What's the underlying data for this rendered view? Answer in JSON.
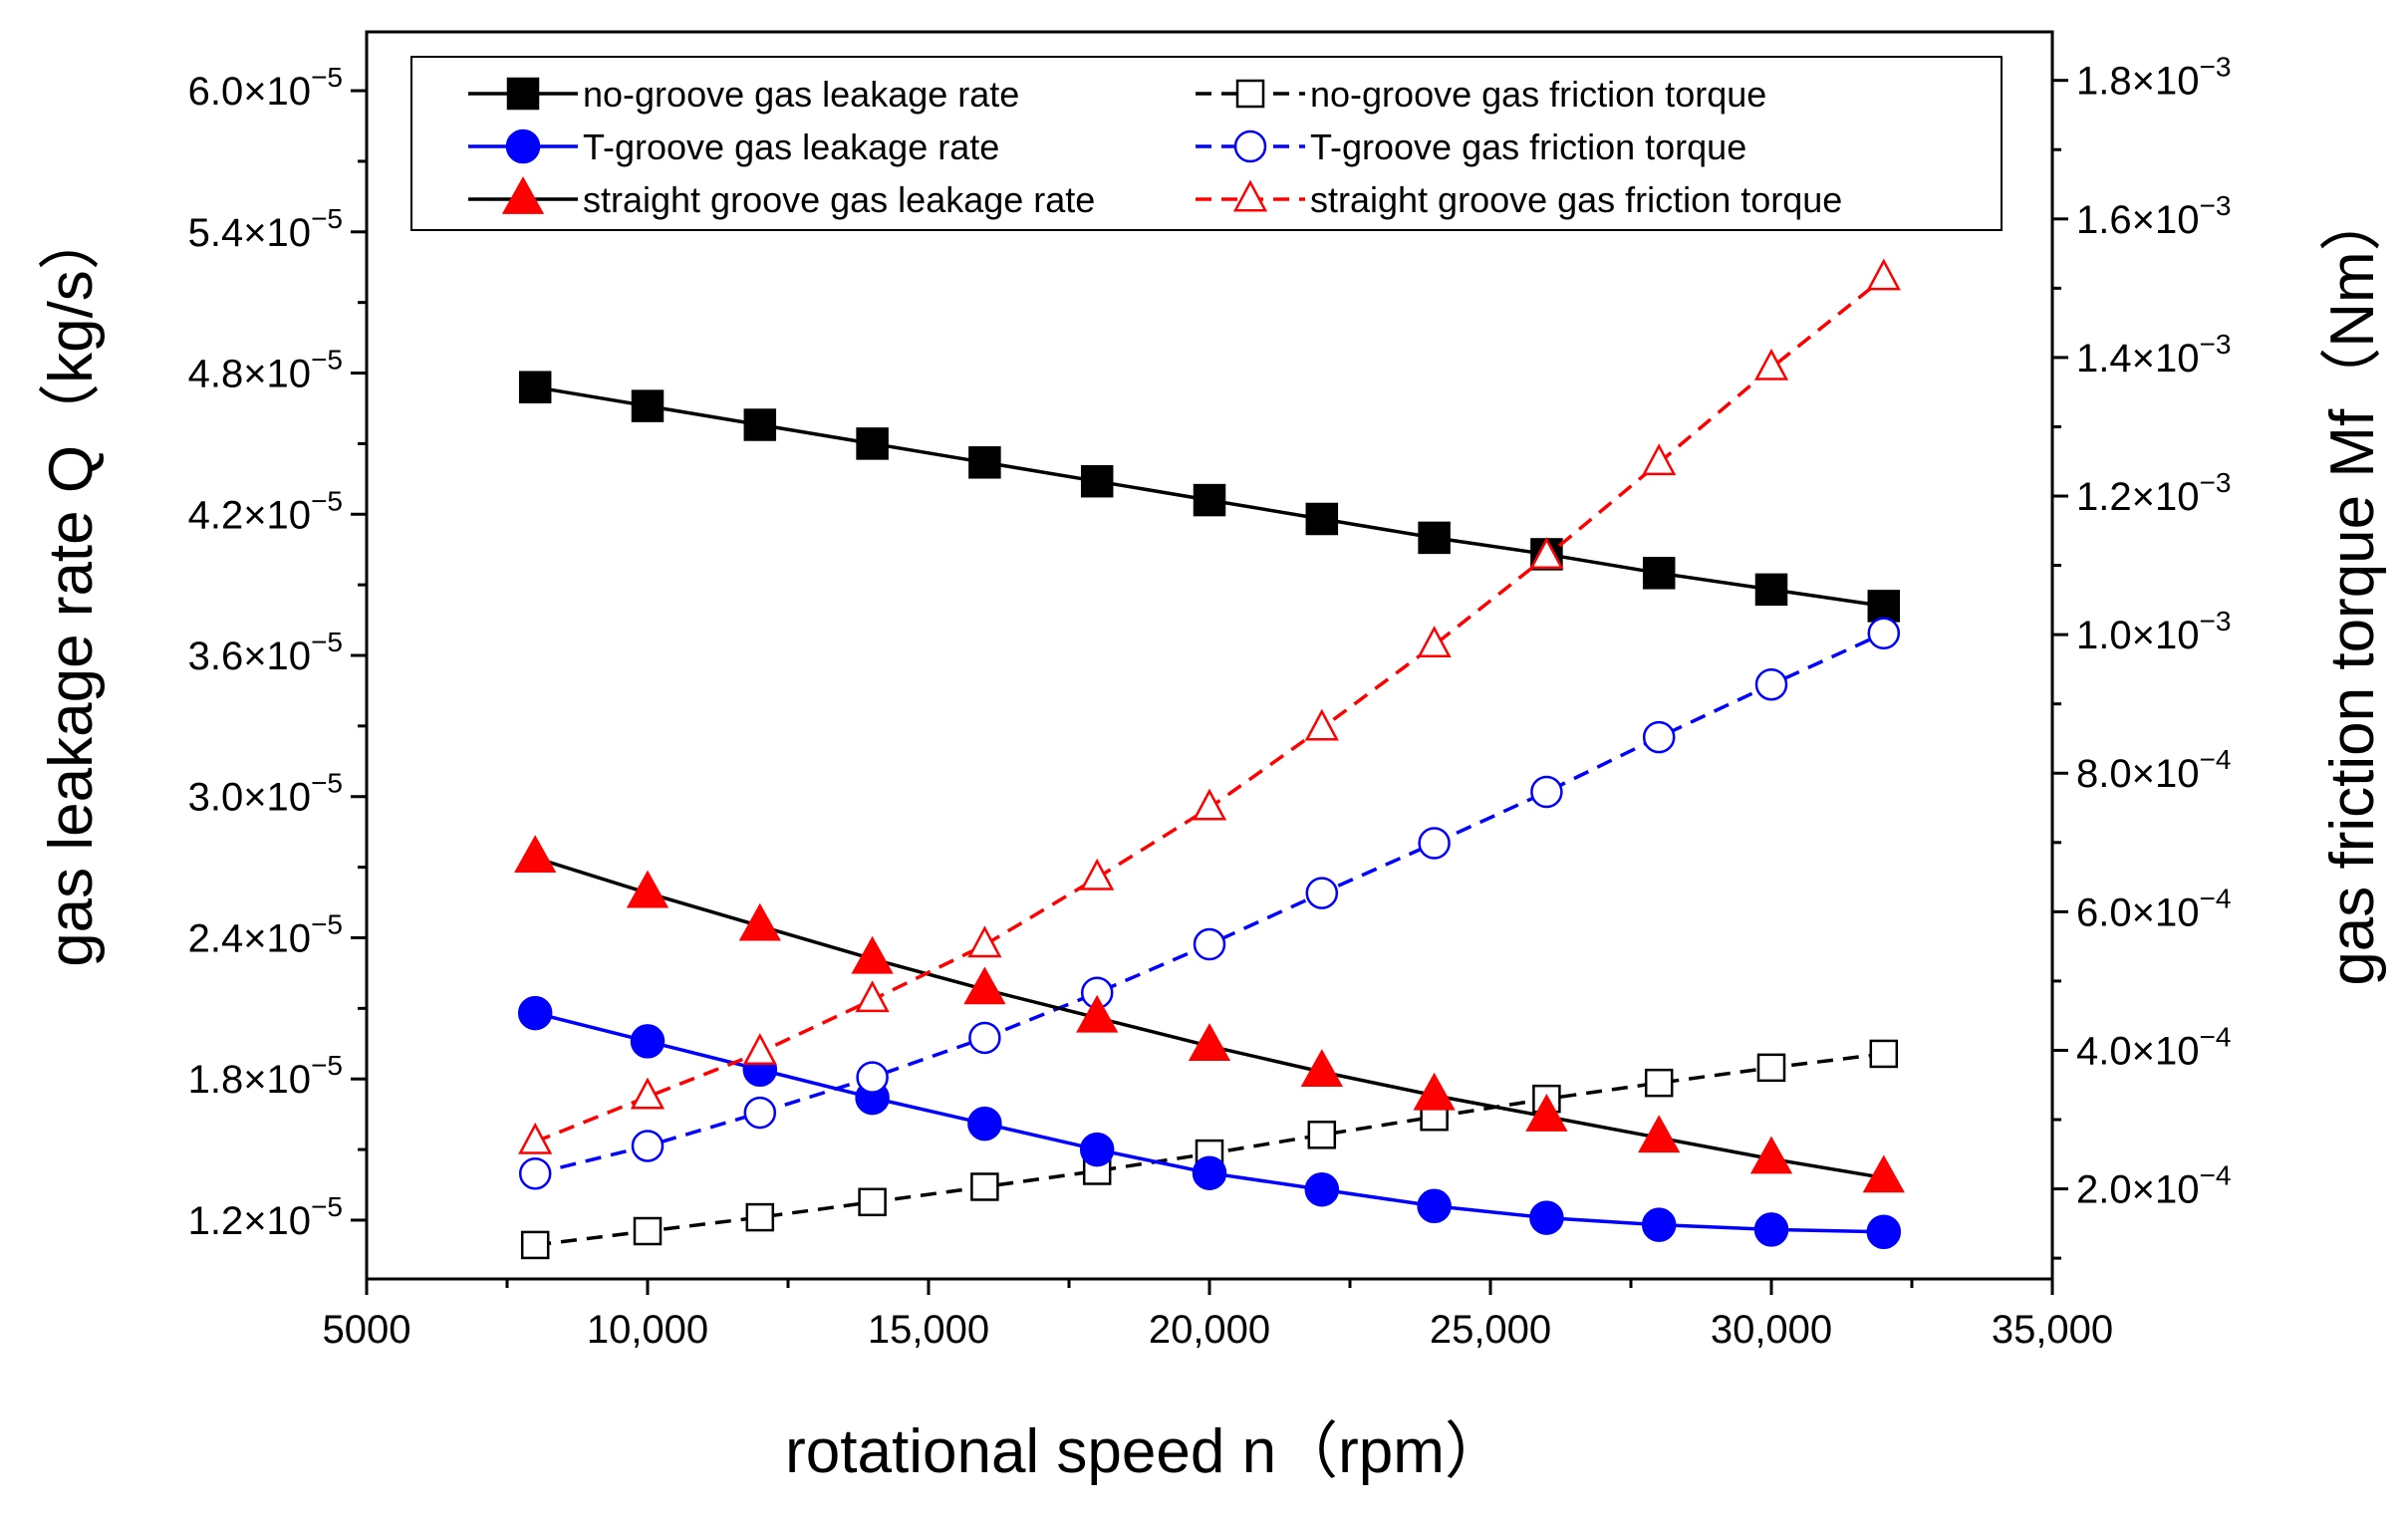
{
  "chart_data": {
    "type": "line",
    "xlabel": "rotational speed n（rpm）",
    "ylabel_left": "gas leakage rate Q（kg/s）",
    "ylabel_right": "gas friction torque Mf（Nm）",
    "x_range": [
      5000,
      35000
    ],
    "y_left_range": [
      9.5e-06,
      6.25e-05
    ],
    "y_right_range": [
      7e-05,
      0.00187
    ],
    "x_ticks": [
      {
        "value": 5000,
        "label": "5000"
      },
      {
        "value": 10000,
        "label": "10,000"
      },
      {
        "value": 15000,
        "label": "15,000"
      },
      {
        "value": 20000,
        "label": "20,000"
      },
      {
        "value": 25000,
        "label": "25,000"
      },
      {
        "value": 30000,
        "label": "30,000"
      },
      {
        "value": 35000,
        "label": "35,000"
      }
    ],
    "y_left_ticks": [
      {
        "value": 1.2e-05,
        "mant": "1.2×10",
        "exp": "−5"
      },
      {
        "value": 1.8e-05,
        "mant": "1.8×10",
        "exp": "−5"
      },
      {
        "value": 2.4e-05,
        "mant": "2.4×10",
        "exp": "−5"
      },
      {
        "value": 3e-05,
        "mant": "3.0×10",
        "exp": "−5"
      },
      {
        "value": 3.6e-05,
        "mant": "3.6×10",
        "exp": "−5"
      },
      {
        "value": 4.2e-05,
        "mant": "4.2×10",
        "exp": "−5"
      },
      {
        "value": 4.8e-05,
        "mant": "4.8×10",
        "exp": "−5"
      },
      {
        "value": 5.4e-05,
        "mant": "5.4×10",
        "exp": "−5"
      },
      {
        "value": 6e-05,
        "mant": "6.0×10",
        "exp": "−5"
      }
    ],
    "y_right_ticks": [
      {
        "value": 0.0002,
        "mant": "2.0×10",
        "exp": "−4"
      },
      {
        "value": 0.0004,
        "mant": "4.0×10",
        "exp": "−4"
      },
      {
        "value": 0.0006,
        "mant": "6.0×10",
        "exp": "−4"
      },
      {
        "value": 0.0008,
        "mant": "8.0×10",
        "exp": "−4"
      },
      {
        "value": 0.001,
        "mant": "1.0×10",
        "exp": "−3"
      },
      {
        "value": 0.0012,
        "mant": "1.2×10",
        "exp": "−3"
      },
      {
        "value": 0.0014,
        "mant": "1.4×10",
        "exp": "−3"
      },
      {
        "value": 0.0016,
        "mant": "1.6×10",
        "exp": "−3"
      },
      {
        "value": 0.0018,
        "mant": "1.8×10",
        "exp": "−3"
      }
    ],
    "x": [
      8000,
      10000,
      12000,
      14000,
      16000,
      18000,
      20000,
      22000,
      24000,
      26000,
      28000,
      30000,
      32000
    ],
    "legend_placement": "top-inside",
    "series": [
      {
        "name": "no-groove gas leakage rate",
        "axis": "left",
        "color": "#000000",
        "marker": "square-filled",
        "dash": "solid",
        "values": [
          4.74e-05,
          4.66e-05,
          4.58e-05,
          4.5e-05,
          4.42e-05,
          4.34e-05,
          4.26e-05,
          4.18e-05,
          4.1e-05,
          4.03e-05,
          3.95e-05,
          3.88e-05,
          3.81e-05
        ]
      },
      {
        "name": "no-groove gas friction torque",
        "axis": "right",
        "color": "#000000",
        "marker": "square-open",
        "dash": "dashed",
        "values": [
          0.000119,
          0.000139,
          0.000159,
          0.000181,
          0.000203,
          0.000226,
          0.000251,
          0.000278,
          0.000304,
          0.00033,
          0.000353,
          0.000375,
          0.000395
        ]
      },
      {
        "name": "T-groove gas leakage rate",
        "axis": "left",
        "color": "#0000ff",
        "marker": "circle-filled",
        "dash": "solid",
        "values": [
          2.08e-05,
          1.96e-05,
          1.84e-05,
          1.72e-05,
          1.61e-05,
          1.5e-05,
          1.4e-05,
          1.33e-05,
          1.26e-05,
          1.21e-05,
          1.18e-05,
          1.16e-05,
          1.15e-05
        ]
      },
      {
        "name": "T-groove gas friction torque",
        "axis": "right",
        "color": "#0000ff",
        "marker": "circle-open",
        "dash": "dashed",
        "values": [
          0.000222,
          0.000262,
          0.00031,
          0.000361,
          0.000418,
          0.000483,
          0.000553,
          0.000627,
          0.000699,
          0.000773,
          0.000852,
          0.000928,
          0.001002
        ]
      },
      {
        "name": "straight groove gas leakage rate",
        "axis": "left",
        "color": "#ff0000",
        "line_color": "#000000",
        "marker": "triangle-filled",
        "dash": "solid",
        "values": [
          2.74e-05,
          2.59e-05,
          2.45e-05,
          2.31e-05,
          2.18e-05,
          2.06e-05,
          1.94e-05,
          1.83e-05,
          1.73e-05,
          1.64e-05,
          1.55e-05,
          1.46e-05,
          1.38e-05
        ]
      },
      {
        "name": "straight groove gas friction torque",
        "axis": "right",
        "color": "#ff0000",
        "marker": "triangle-open",
        "dash": "dashed",
        "values": [
          0.000268,
          0.000333,
          0.000397,
          0.000473,
          0.000552,
          0.000649,
          0.00075,
          0.000865,
          0.000985,
          0.001113,
          0.001248,
          0.001385,
          0.001515
        ]
      }
    ]
  }
}
